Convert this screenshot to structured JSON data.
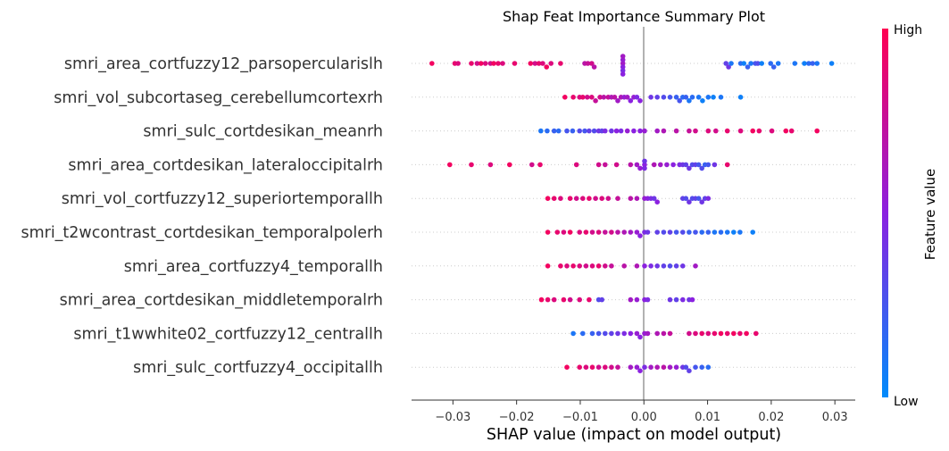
{
  "chart_data": {
    "type": "scatter",
    "title": "Shap Feat Importance Summary Plot",
    "xlabel": "SHAP value (impact on model output)",
    "xlim": [
      -0.0365,
      0.0332
    ],
    "xticks": [
      -0.03,
      -0.02,
      -0.01,
      0.0,
      0.01,
      0.02,
      0.03
    ],
    "xtick_labels": [
      "−0.03",
      "−0.02",
      "−0.01",
      "0.00",
      "0.01",
      "0.02",
      "0.03"
    ],
    "colorbar": {
      "label": "Feature value",
      "high": "High",
      "low": "Low",
      "high_color": "#ff0052",
      "mid_color": "#8b21e0",
      "low_color": "#008bfb"
    },
    "series": [
      {
        "name": "smri_area_cortfuzzy12_parsopercularislh",
        "x": [
          -0.0333,
          -0.0297,
          -0.0292,
          -0.0271,
          -0.0262,
          -0.0256,
          -0.0249,
          -0.0241,
          -0.0236,
          -0.0229,
          -0.0222,
          -0.0203,
          -0.0178,
          -0.0171,
          -0.0165,
          -0.0159,
          -0.0153,
          -0.0146,
          -0.0131,
          -0.0093,
          -0.0088,
          -0.0082,
          -0.0078,
          -0.0033,
          -0.0033,
          -0.0033,
          -0.0033,
          -0.0033,
          -0.0033,
          0.0129,
          0.0133,
          0.0137,
          0.0152,
          0.0157,
          0.0163,
          0.0168,
          0.0175,
          0.0179,
          0.0185,
          0.0199,
          0.0204,
          0.0211,
          0.0237,
          0.0252,
          0.0259,
          0.0265,
          0.0272,
          0.0295
        ],
        "f": [
          0.95,
          0.9,
          0.85,
          0.9,
          0.8,
          0.95,
          0.85,
          0.8,
          0.95,
          0.9,
          0.85,
          0.9,
          0.95,
          0.8,
          0.9,
          0.85,
          0.95,
          0.85,
          0.9,
          0.7,
          0.75,
          0.8,
          0.7,
          0.6,
          0.5,
          0.55,
          0.45,
          0.6,
          0.5,
          0.35,
          0.4,
          0.1,
          0.15,
          0.05,
          0.2,
          0.1,
          0.25,
          0.3,
          0.05,
          0.15,
          0.2,
          0.1,
          0.1,
          0.05,
          0.15,
          0.2,
          0.1,
          0.05
        ]
      },
      {
        "name": "smri_vol_subcortaseg_cerebellumcortexrh",
        "x": [
          -0.0124,
          -0.0111,
          -0.0101,
          -0.0096,
          -0.0089,
          -0.0082,
          -0.0076,
          -0.0069,
          -0.0063,
          -0.0056,
          -0.0051,
          -0.0046,
          -0.0041,
          -0.0036,
          -0.0031,
          -0.0026,
          -0.0021,
          -0.0016,
          -0.0011,
          -0.0006,
          0.0011,
          0.0021,
          0.0031,
          0.0041,
          0.0051,
          0.0056,
          0.0061,
          0.0066,
          0.0071,
          0.0076,
          0.0086,
          0.0092,
          0.0101,
          0.0109,
          0.0121,
          0.0152
        ],
        "f": [
          0.95,
          0.9,
          0.85,
          0.9,
          0.8,
          0.85,
          0.75,
          0.8,
          0.7,
          0.75,
          0.65,
          0.7,
          0.6,
          0.65,
          0.55,
          0.6,
          0.5,
          0.55,
          0.45,
          0.5,
          0.4,
          0.35,
          0.3,
          0.25,
          0.2,
          0.25,
          0.15,
          0.2,
          0.1,
          0.15,
          0.1,
          0.05,
          0.1,
          0.05,
          0.1,
          0.05
        ]
      },
      {
        "name": "smri_sulc_cortdesikan_meanrh",
        "x": [
          -0.0162,
          -0.0152,
          -0.0141,
          -0.0134,
          -0.0121,
          -0.0112,
          -0.0101,
          -0.0093,
          -0.0086,
          -0.0078,
          -0.0071,
          -0.0066,
          -0.0061,
          -0.0051,
          -0.0043,
          -0.0036,
          -0.0026,
          -0.0016,
          -0.0006,
          0.0001,
          0.0021,
          0.0031,
          0.0051,
          0.0071,
          0.0081,
          0.0101,
          0.0113,
          0.0131,
          0.0152,
          0.0171,
          0.0181,
          0.0201,
          0.0223,
          0.0232,
          0.0272
        ],
        "f": [
          0.1,
          0.15,
          0.2,
          0.15,
          0.25,
          0.2,
          0.3,
          0.25,
          0.35,
          0.3,
          0.4,
          0.35,
          0.45,
          0.4,
          0.5,
          0.45,
          0.55,
          0.5,
          0.5,
          0.55,
          0.6,
          0.65,
          0.7,
          0.75,
          0.8,
          0.85,
          0.8,
          0.9,
          0.85,
          0.95,
          0.9,
          0.85,
          0.95,
          0.9,
          0.95
        ]
      },
      {
        "name": "smri_area_cortdesikan_lateraloccipitalrh",
        "x": [
          -0.0305,
          -0.0271,
          -0.0241,
          -0.0211,
          -0.0176,
          -0.0163,
          -0.0106,
          -0.0071,
          -0.0061,
          -0.0043,
          -0.0021,
          -0.0011,
          -0.0006,
          0.0001,
          0.0001,
          0.0001,
          0.0016,
          0.0026,
          0.0036,
          0.0046,
          0.0056,
          0.0061,
          0.0066,
          0.0071,
          0.0076,
          0.0081,
          0.0086,
          0.0091,
          0.0096,
          0.0101,
          0.0111,
          0.0131
        ],
        "f": [
          0.95,
          0.9,
          0.85,
          0.95,
          0.8,
          0.9,
          0.85,
          0.8,
          0.75,
          0.8,
          0.7,
          0.6,
          0.55,
          0.5,
          0.45,
          0.4,
          0.65,
          0.6,
          0.55,
          0.5,
          0.45,
          0.4,
          0.35,
          0.4,
          0.3,
          0.35,
          0.25,
          0.3,
          0.2,
          0.25,
          0.4,
          0.9
        ]
      },
      {
        "name": "smri_vol_cortfuzzy12_superiortemporallh",
        "x": [
          -0.0151,
          -0.0141,
          -0.0131,
          -0.0116,
          -0.0106,
          -0.0096,
          -0.0086,
          -0.0076,
          -0.0066,
          -0.0056,
          -0.0041,
          -0.0021,
          -0.0011,
          0.0001,
          0.0006,
          0.0011,
          0.0016,
          0.0021,
          0.0061,
          0.0066,
          0.0071,
          0.0076,
          0.0081,
          0.0086,
          0.0091,
          0.0096,
          0.0101
        ],
        "f": [
          0.95,
          0.9,
          0.85,
          0.9,
          0.8,
          0.85,
          0.9,
          0.8,
          0.85,
          0.8,
          0.75,
          0.7,
          0.65,
          0.55,
          0.5,
          0.45,
          0.4,
          0.5,
          0.35,
          0.3,
          0.4,
          0.3,
          0.35,
          0.25,
          0.4,
          0.35,
          0.45
        ]
      },
      {
        "name": "smri_t2wcontrast_cortdesikan_temporalpolerh",
        "x": [
          -0.0151,
          -0.0136,
          -0.0126,
          -0.0116,
          -0.0101,
          -0.0091,
          -0.0081,
          -0.0071,
          -0.0061,
          -0.0051,
          -0.0041,
          -0.0031,
          -0.0021,
          -0.0011,
          -0.0006,
          0.0001,
          0.0006,
          0.0021,
          0.0031,
          0.0041,
          0.0051,
          0.0061,
          0.0071,
          0.0081,
          0.0091,
          0.0101,
          0.0111,
          0.0121,
          0.0131,
          0.0141,
          0.0151,
          0.0171
        ],
        "f": [
          0.95,
          0.9,
          0.85,
          0.95,
          0.85,
          0.9,
          0.8,
          0.85,
          0.75,
          0.8,
          0.7,
          0.65,
          0.6,
          0.55,
          0.5,
          0.45,
          0.4,
          0.35,
          0.3,
          0.35,
          0.25,
          0.3,
          0.2,
          0.25,
          0.15,
          0.2,
          0.1,
          0.15,
          0.1,
          0.05,
          0.1,
          0.05
        ]
      },
      {
        "name": "smri_area_cortfuzzy4_temporallh",
        "x": [
          -0.0151,
          -0.0131,
          -0.0121,
          -0.0111,
          -0.0101,
          -0.0091,
          -0.0081,
          -0.0071,
          -0.0061,
          -0.0051,
          -0.0031,
          -0.0011,
          0.0001,
          0.0011,
          0.0021,
          0.0031,
          0.0041,
          0.0051,
          0.0061,
          0.0081
        ],
        "f": [
          0.95,
          0.9,
          0.85,
          0.9,
          0.85,
          0.8,
          0.85,
          0.9,
          0.8,
          0.75,
          0.7,
          0.65,
          0.5,
          0.45,
          0.4,
          0.35,
          0.3,
          0.35,
          0.4,
          0.6
        ]
      },
      {
        "name": "smri_area_cortdesikan_middletemporalrh",
        "x": [
          -0.0161,
          -0.0151,
          -0.0141,
          -0.0126,
          -0.0116,
          -0.0101,
          -0.0086,
          -0.0071,
          -0.0066,
          -0.0021,
          -0.0011,
          0.0001,
          0.0006,
          0.0041,
          0.0051,
          0.0061,
          0.0071,
          0.0076
        ],
        "f": [
          0.95,
          0.9,
          0.85,
          0.9,
          0.8,
          0.85,
          0.9,
          0.3,
          0.35,
          0.6,
          0.55,
          0.5,
          0.45,
          0.4,
          0.35,
          0.45,
          0.4,
          0.5
        ]
      },
      {
        "name": "smri_t1wwhite02_cortfuzzy12_centrallh",
        "x": [
          -0.0111,
          -0.0096,
          -0.0081,
          -0.0071,
          -0.0061,
          -0.0051,
          -0.0041,
          -0.0031,
          -0.0021,
          -0.0011,
          -0.0006,
          0.0001,
          0.0006,
          0.0021,
          0.0031,
          0.0041,
          0.0071,
          0.0081,
          0.0091,
          0.0101,
          0.0111,
          0.0121,
          0.0131,
          0.0141,
          0.0151,
          0.0161,
          0.0176
        ],
        "f": [
          0.1,
          0.15,
          0.2,
          0.25,
          0.3,
          0.35,
          0.4,
          0.45,
          0.5,
          0.55,
          0.5,
          0.55,
          0.6,
          0.65,
          0.7,
          0.75,
          0.8,
          0.85,
          0.9,
          0.85,
          0.9,
          0.95,
          0.9,
          0.95,
          0.9,
          0.95,
          0.9
        ]
      },
      {
        "name": "smri_sulc_cortfuzzy4_occipitallh",
        "x": [
          -0.0121,
          -0.0101,
          -0.0091,
          -0.0081,
          -0.0071,
          -0.0061,
          -0.0051,
          -0.0041,
          -0.0021,
          -0.0011,
          -0.0006,
          0.0001,
          0.0011,
          0.0021,
          0.0031,
          0.0041,
          0.0051,
          0.0061,
          0.0066,
          0.0071,
          0.0081,
          0.0091,
          0.0101
        ],
        "f": [
          0.95,
          0.9,
          0.85,
          0.9,
          0.8,
          0.85,
          0.8,
          0.75,
          0.6,
          0.55,
          0.5,
          0.45,
          0.6,
          0.65,
          0.7,
          0.6,
          0.55,
          0.4,
          0.3,
          0.35,
          0.25,
          0.2,
          0.15
        ]
      }
    ]
  }
}
